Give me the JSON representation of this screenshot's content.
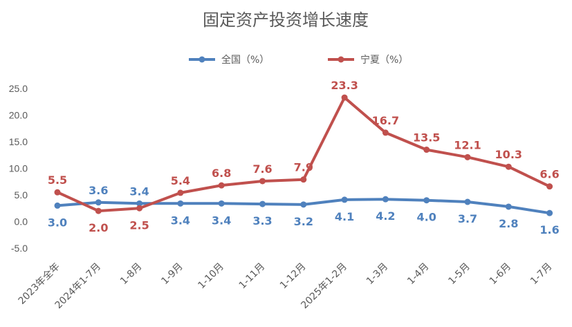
{
  "chart_data": {
    "type": "line",
    "title": "固定资产投资增长速度",
    "categories": [
      "2023年全年",
      "2024年1-7月",
      "1-8月",
      "1-9月",
      "1-10月",
      "1-11月",
      "1-12月",
      "2025年1-2月",
      "1-3月",
      "1-4月",
      "1-5月",
      "1-6月",
      "1-7月"
    ],
    "series": [
      {
        "name": "全国（%）",
        "color": "#4F81BD",
        "values": [
          3.0,
          3.6,
          3.4,
          3.4,
          3.4,
          3.3,
          3.2,
          4.1,
          4.2,
          4.0,
          3.7,
          2.8,
          1.6
        ]
      },
      {
        "name": "宁夏（%）",
        "color": "#C0504D",
        "values": [
          5.5,
          2.0,
          2.5,
          5.4,
          6.8,
          7.6,
          7.9,
          23.3,
          16.7,
          13.5,
          12.1,
          10.3,
          6.6
        ]
      }
    ],
    "yticks": [
      "25.0",
      "20.0",
      "15.0",
      "10.0",
      "5.0",
      "0.0",
      "-5.0"
    ],
    "ylim": [
      -5,
      25
    ],
    "grid": false,
    "legend": "top-center",
    "xlabel": "",
    "ylabel": ""
  }
}
